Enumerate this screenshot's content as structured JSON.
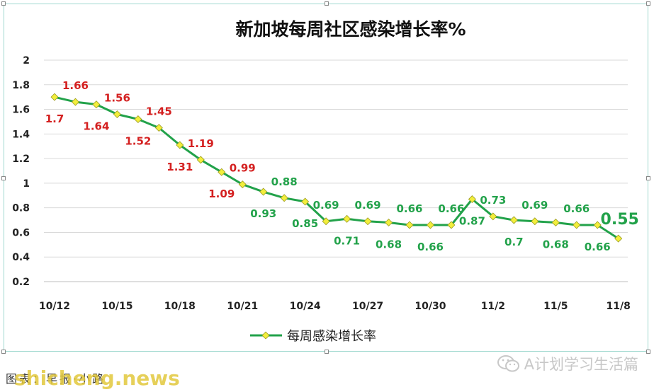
{
  "chart_data": {
    "type": "line",
    "title": "新加坡每周社区感染增长率%",
    "xlabel": "",
    "ylabel": "",
    "ylim": [
      0.2,
      2
    ],
    "yticks": [
      "0.2",
      "0.4",
      "0.6",
      "0.8",
      "1",
      "1.2",
      "1.4",
      "1.6",
      "1.8",
      "2"
    ],
    "x_tick_labels": [
      "10/12",
      "10/15",
      "10/18",
      "10/21",
      "10/24",
      "10/27",
      "10/30",
      "11/2",
      "11/5",
      "11/8"
    ],
    "grid": true,
    "legend": "bottom",
    "series": [
      {
        "name": "每周感染增长率",
        "color": "#22a24a",
        "marker_color": "#f2ee3c",
        "x": [
          "10/12",
          "10/13",
          "10/14",
          "10/15",
          "10/16",
          "10/17",
          "10/18",
          "10/19",
          "10/20",
          "10/21",
          "10/22",
          "10/23",
          "10/24",
          "10/25",
          "10/26",
          "10/27",
          "10/28",
          "10/29",
          "10/30",
          "10/31",
          "11/1",
          "11/2",
          "11/3",
          "11/4",
          "11/5",
          "11/6",
          "11/7",
          "11/8"
        ],
        "values": [
          1.7,
          1.66,
          1.64,
          1.56,
          1.52,
          1.45,
          1.31,
          1.19,
          1.09,
          0.99,
          0.93,
          0.88,
          0.85,
          0.69,
          0.71,
          0.69,
          0.68,
          0.66,
          0.66,
          0.66,
          0.87,
          0.73,
          0.7,
          0.69,
          0.68,
          0.66,
          0.66,
          0.55
        ],
        "labels": [
          "1.7",
          "1.66",
          "1.64",
          "1.56",
          "1.52",
          "1.45",
          "1.31",
          "1.19",
          "1.09",
          "0.99",
          "0.93",
          "0.88",
          "0.85",
          "0.69",
          "0.71",
          "0.69",
          "0.68",
          "0.66",
          "0.66",
          "0.66",
          "0.87",
          "0.73",
          "0.7",
          "0.69",
          "0.68",
          "0.66",
          "0.66",
          "0.55"
        ]
      }
    ],
    "label_colors": {
      "high": "#d42020",
      "low": "#22a24a"
    }
  },
  "caption": "图表：早报·小路",
  "watermark_source": "shicheng.news",
  "wechat_brand": "A计划学习生活篇"
}
